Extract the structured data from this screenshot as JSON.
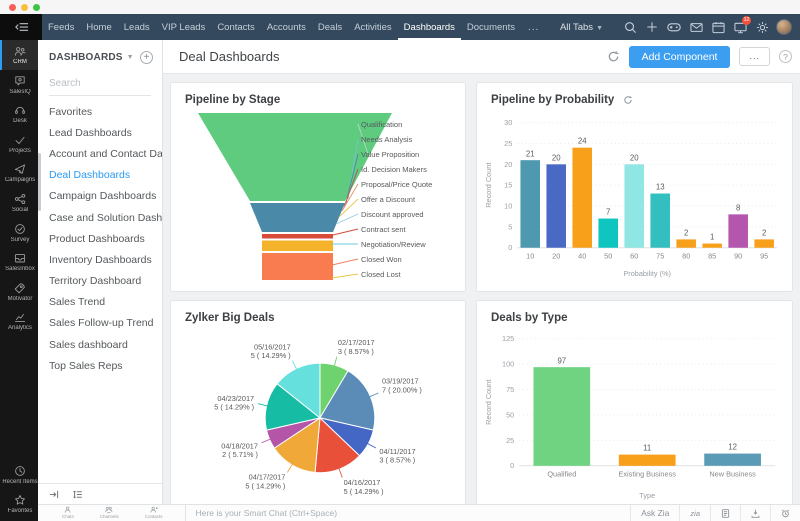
{
  "window": {
    "traffic_light_colors": [
      "#f95f57",
      "#fbbe3c",
      "#3ec544"
    ]
  },
  "top_nav": {
    "bg_color": "#35495e",
    "items": [
      "Feeds",
      "Home",
      "Leads",
      "VIP Leads",
      "Contacts",
      "Accounts",
      "Deals",
      "Activities",
      "Dashboards",
      "Documents"
    ],
    "active_item": "Dashboards",
    "overflow_label": "...",
    "all_tabs_label": "All Tabs",
    "notification_count": "12"
  },
  "app_rail": {
    "items": [
      {
        "label": "CRM",
        "icon": "crm-icon",
        "active": true
      },
      {
        "label": "SalesIQ",
        "icon": "salesiq-icon"
      },
      {
        "label": "Desk",
        "icon": "desk-icon"
      },
      {
        "label": "Projects",
        "icon": "projects-icon"
      },
      {
        "label": "Campaigns",
        "icon": "campaigns-icon"
      },
      {
        "label": "Social",
        "icon": "social-icon"
      },
      {
        "label": "Survey",
        "icon": "survey-icon"
      },
      {
        "label": "SalesInbox",
        "icon": "salesinbox-icon"
      },
      {
        "label": "Motivator",
        "icon": "motivator-icon"
      },
      {
        "label": "Analytics",
        "icon": "analytics-icon"
      }
    ],
    "footer_items": [
      {
        "label": "Recent Items",
        "icon": "recent-items-icon"
      },
      {
        "label": "Favorites",
        "icon": "favorites-icon"
      }
    ]
  },
  "sidebar": {
    "title": "DASHBOARDS",
    "search_placeholder": "Search",
    "items": [
      "Favorites",
      "Lead Dashboards",
      "Account and Contact Da...",
      "Deal Dashboards",
      "Campaign Dashboards",
      "Case and Solution Dash...",
      "Product Dashboards",
      "Inventory Dashboards",
      "Territory Dashboard",
      "Sales Trend",
      "Sales Follow-up Trend",
      "Sales dashboard",
      "Top Sales Reps"
    ],
    "active_item": "Deal Dashboards",
    "active_color": "#2b9af3"
  },
  "header": {
    "title": "Deal Dashboards",
    "add_component_label": "Add Component",
    "more_label": "...",
    "help_label": "?",
    "accent_color": "#3b9ef0"
  },
  "chat_bar": {
    "tabs": [
      {
        "label": "Chats",
        "icon": "chats-icon"
      },
      {
        "label": "Channels",
        "icon": "channels-icon"
      },
      {
        "label": "Contacts",
        "icon": "contacts-icon"
      }
    ],
    "input_placeholder": "Here is your Smart Chat (Ctrl+Space)",
    "ask_zia_label": "Ask Zia"
  },
  "chart_data": [
    {
      "type": "funnel",
      "title": "Pipeline by Stage",
      "stages": [
        "Qualification",
        "Needs Analysis",
        "Value Proposition",
        "Id. Decision Makers",
        "Proposal/Price Quote",
        "Offer a Discount",
        "Discount approved",
        "Contract sent",
        "Negotiation/Review",
        "Closed Won",
        "Closed Lost"
      ],
      "band_colors": [
        "#5ecb7f",
        "#4a89a8",
        "#d84b38",
        "#f5b32b",
        "#f97c50"
      ],
      "leader_colors": [
        "#b5d9c0",
        "#79c3cf",
        "#4a89a8",
        "#c0504d",
        "#e8935a",
        "#e6c44d",
        "#8fc9e8",
        "#d84b38",
        "#6bc7dd",
        "#f08060",
        "#e8c843"
      ]
    },
    {
      "type": "bar",
      "title": "Pipeline by Probability",
      "categories": [
        "10",
        "20",
        "40",
        "50",
        "60",
        "75",
        "80",
        "85",
        "90",
        "95"
      ],
      "values": [
        21,
        20,
        24,
        7,
        20,
        13,
        2,
        1,
        8,
        2
      ],
      "colors": [
        "#4f99b0",
        "#4a69c4",
        "#f9a01b",
        "#0fc5c0",
        "#8fe6e2",
        "#33bfbf",
        "#f9a01b",
        "#f9a01b",
        "#b455ae",
        "#f9a01b"
      ],
      "xlabel": "Probability (%)",
      "ylabel": "Record Count",
      "yticks": [
        0,
        5,
        10,
        15,
        20,
        25,
        30
      ],
      "ylim": [
        0,
        30
      ],
      "grid": true,
      "legend": false
    },
    {
      "type": "pie",
      "title": "Zylker Big Deals",
      "slices": [
        {
          "label": "02/17/2017",
          "value": 3,
          "pct": "8.57%",
          "color": "#6ed36e"
        },
        {
          "label": "03/19/2017",
          "value": 7,
          "pct": "20.00%",
          "color": "#5b8cb8"
        },
        {
          "label": "04/11/2017",
          "value": 3,
          "pct": "8.57%",
          "color": "#4466c4"
        },
        {
          "label": "04/16/2017",
          "value": 5,
          "pct": "14.29%",
          "color": "#e8503a"
        },
        {
          "label": "04/17/2017",
          "value": 5,
          "pct": "14.29%",
          "color": "#f0a939"
        },
        {
          "label": "04/18/2017",
          "value": 2,
          "pct": "5.71%",
          "color": "#b455a8"
        },
        {
          "label": "04/23/2017",
          "value": 5,
          "pct": "14.29%",
          "color": "#16bca4"
        },
        {
          "label": "05/16/2017",
          "value": 5,
          "pct": "14.29%",
          "color": "#66e0dc"
        }
      ]
    },
    {
      "type": "bar",
      "title": "Deals by Type",
      "categories": [
        "Qualified",
        "Existing Business",
        "New Business"
      ],
      "values": [
        97,
        11,
        12
      ],
      "colors": [
        "#6fd382",
        "#f9a01b",
        "#5b9bb5"
      ],
      "xlabel": "Type",
      "ylabel": "Record Count",
      "yticks": [
        0,
        25,
        50,
        75,
        100,
        125
      ],
      "ylim": [
        0,
        125
      ],
      "grid": true,
      "legend": false
    }
  ]
}
